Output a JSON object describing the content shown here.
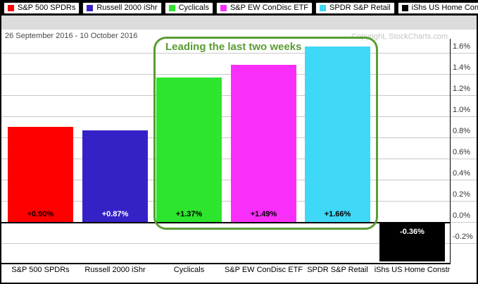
{
  "header": {
    "date_range": "26 September 2016 - 10 October 2016",
    "copyright": "Copyright, StockCharts.com"
  },
  "annotation": {
    "text": "Leading the last two weeks",
    "color": "#5a9c32"
  },
  "legend": {
    "items": [
      {
        "label": "S&P 500 SPDRs",
        "color": "#ff0000"
      },
      {
        "label": "Russell 2000 iShr",
        "color": "#3522c7"
      },
      {
        "label": "Cyclicals",
        "color": "#2de52d"
      },
      {
        "label": "S&P EW ConDisc ETF",
        "color": "#fa2efa"
      },
      {
        "label": "SPDR S&P Retail",
        "color": "#3fd8f6"
      },
      {
        "label": "iShs US Home Constr",
        "color": "#000000"
      }
    ]
  },
  "chart_data": {
    "type": "bar",
    "title": "26 September 2016 - 10 October 2016",
    "categories": [
      "S&P 500 SPDRs",
      "Russell 2000 iShr",
      "Cyclicals",
      "S&P EW ConDisc ETF",
      "SPDR S&P Retail",
      "iShs US Home Constr"
    ],
    "values": [
      0.9,
      0.87,
      1.37,
      1.49,
      1.66,
      -0.36
    ],
    "value_labels": [
      "+0.90%",
      "+0.87%",
      "+1.37%",
      "+1.49%",
      "+1.66%",
      "-0.36%"
    ],
    "bar_colors": [
      "#ff0000",
      "#3522c7",
      "#2de52d",
      "#fa2efa",
      "#3fd8f6",
      "#000000"
    ],
    "value_label_colors": [
      "#000000",
      "#ffffff",
      "#000000",
      "#000000",
      "#000000",
      "#ffffff"
    ],
    "y_ticks": [
      "1.6%",
      "1.4%",
      "1.2%",
      "1.0%",
      "0.8%",
      "0.6%",
      "0.4%",
      "0.2%",
      "0.0%",
      "-0.2%"
    ],
    "ylim": [
      -0.39,
      1.8
    ],
    "grid": true,
    "legend_position": "top",
    "annotation": "Leading the last two weeks",
    "annotation_span": [
      "Cyclicals",
      "S&P EW ConDisc ETF",
      "SPDR S&P Retail"
    ],
    "unit": "percent"
  }
}
